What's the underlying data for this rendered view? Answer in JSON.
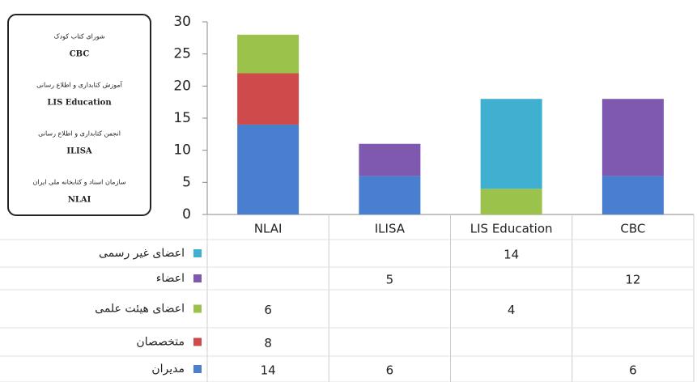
{
  "chart_data": {
    "type": "bar",
    "stacked": true,
    "categories": [
      "NLAI",
      "ILISA",
      "LIS Education",
      "CBC"
    ],
    "series": [
      {
        "name": "مدیران",
        "color": "#4a7fcf",
        "values": [
          14,
          6,
          null,
          6
        ]
      },
      {
        "name": "متخصصان",
        "color": "#cf4a4a",
        "values": [
          8,
          null,
          null,
          null
        ]
      },
      {
        "name": "اعضای هیئت علمی",
        "color": "#9bc24a",
        "values": [
          6,
          null,
          4,
          null
        ]
      },
      {
        "name": "اعضاء",
        "color": "#7f58b0",
        "values": [
          null,
          5,
          null,
          12
        ]
      },
      {
        "name": "اعضای غیر رسمی",
        "color": "#3fb0d0",
        "values": [
          null,
          null,
          14,
          null
        ]
      }
    ],
    "ylim": [
      0,
      30
    ],
    "yticks": [
      0,
      5,
      10,
      15,
      20,
      25,
      30
    ],
    "key": [
      {
        "label": "شورای کتاب کودک",
        "name": "CBC"
      },
      {
        "label": "آموزش کتابداری و اطلاع رسانی",
        "name": "LIS Education"
      },
      {
        "label": "انجمن کتابداری و اطلاع رسانی",
        "name": "ILISA"
      },
      {
        "label": "سازمان اسناد و کتابخانه ملی ایران",
        "name": "NLAI"
      }
    ]
  }
}
